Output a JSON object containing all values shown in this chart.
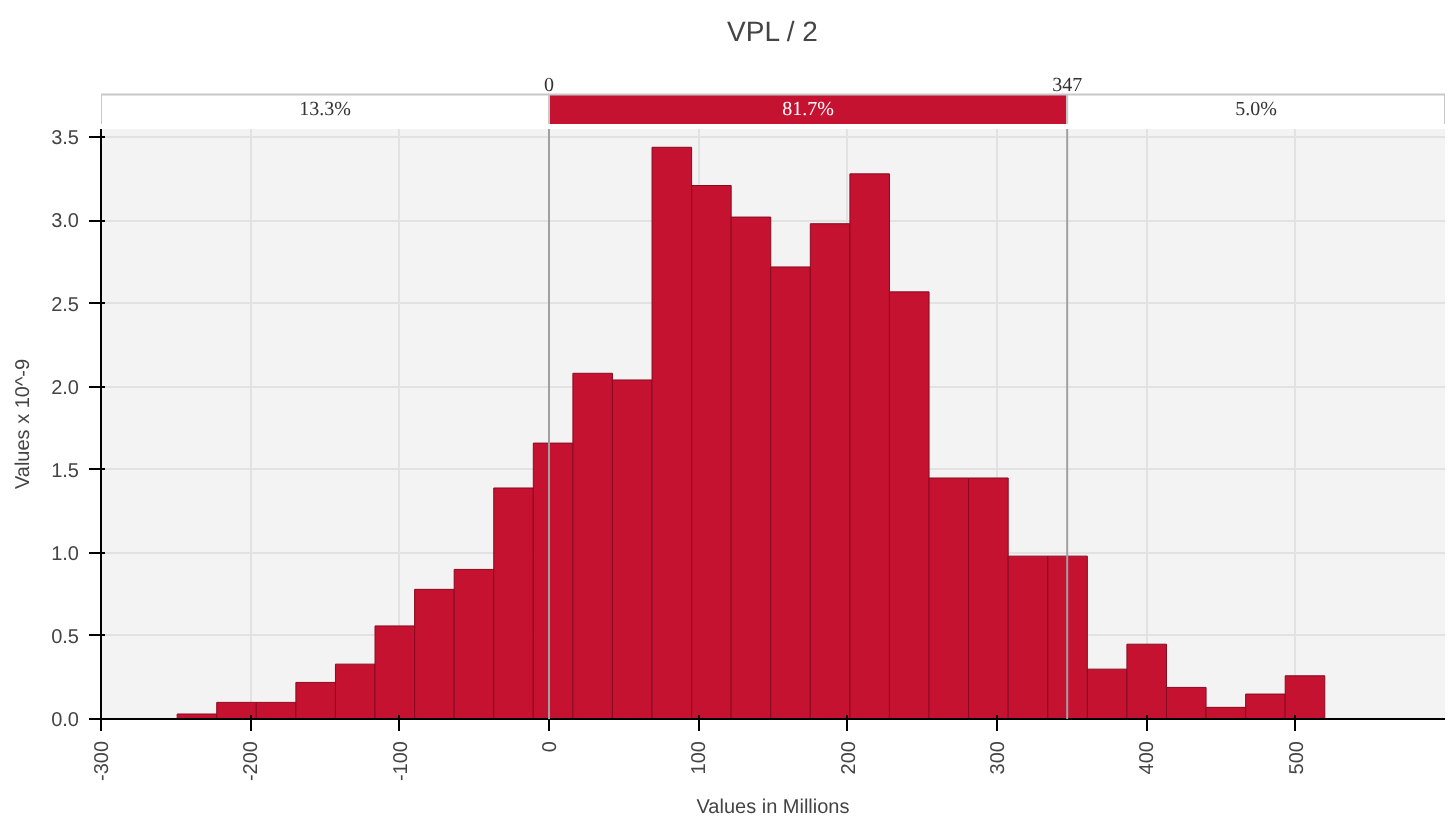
{
  "chart_data": {
    "type": "histogram",
    "title": "VPL / 2",
    "xlabel": "Values in Millions",
    "ylabel": "Values x 10^-9",
    "bins": [
      -249,
      -222.5,
      -196,
      -169.5,
      -143,
      -116.5,
      -90,
      -63.5,
      -37,
      -10.5,
      16,
      42.5,
      69,
      95.5,
      122,
      148.5,
      175,
      201.5,
      228,
      254.5,
      281,
      307.5,
      334,
      360.5,
      387,
      413.5,
      440,
      466.5,
      493,
      519.5
    ],
    "values": [
      0.03,
      0.1,
      0.1,
      0.22,
      0.33,
      0.56,
      0.78,
      0.9,
      1.39,
      1.66,
      2.08,
      2.04,
      3.44,
      3.21,
      3.02,
      2.72,
      2.98,
      3.28,
      2.57,
      1.45,
      1.45,
      0.98,
      0.98,
      0.3,
      0.45,
      0.19,
      0.07,
      0.15,
      0.26
    ],
    "color": "#c41230",
    "xlim": [
      -300,
      600
    ],
    "xticks": [
      -300,
      -200,
      -100,
      0,
      100,
      200,
      300,
      400,
      500
    ],
    "ylim": [
      0,
      3.55
    ],
    "yticks": [
      {
        "value": 0,
        "label": "0.0"
      },
      0.5,
      {
        "value": 1,
        "label": "1.0"
      },
      1.5,
      {
        "value": 2,
        "label": "2.0"
      },
      2.5,
      {
        "value": 3,
        "label": "3.0"
      },
      3.5
    ],
    "grid": true,
    "ref_lines": [
      {
        "axis": "x",
        "value": 0,
        "label": "0",
        "color": "#a0a0a0"
      },
      {
        "axis": "x",
        "value": 347,
        "label": "347",
        "color": "#a0a0a0"
      }
    ],
    "annotations": [
      "13.3%",
      "81.7%",
      "5.0%"
    ]
  }
}
